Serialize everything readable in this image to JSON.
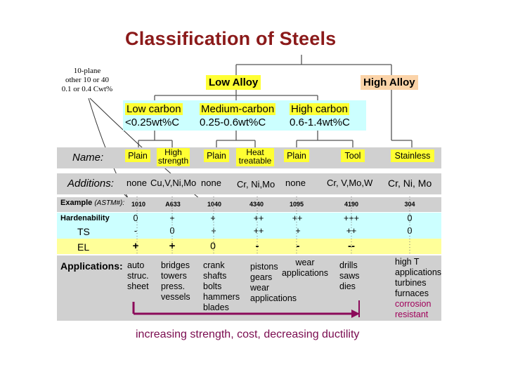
{
  "title": "Classification of Steels",
  "handwritten_note": [
    "10-plane",
    "other 10 or 40",
    "0.1 or 0.4 Cwt%"
  ],
  "alloy_groups": {
    "low": "Low Alloy",
    "high": "High Alloy"
  },
  "carbon_groups": [
    {
      "name": "Low carbon",
      "range": "<0.25wt%C"
    },
    {
      "name": "Medium-carbon",
      "range": "0.25-0.6wt%C"
    },
    {
      "name": "High carbon",
      "range": "0.6-1.4wt%C"
    }
  ],
  "rows": {
    "name_label": "Name:",
    "additions_label": "Additions:",
    "example_label": "Example",
    "example_sub": "(ASTM#):",
    "hardenability_label": "Hardenability",
    "ts_label": "TS",
    "el_label": "EL",
    "applications_label": "Applications:"
  },
  "columns": [
    {
      "name": "Plain",
      "additions": "none",
      "example": "1010",
      "hardenability": "0",
      "ts": "-",
      "el": "+",
      "applications": [
        "auto",
        "struc.",
        "sheet"
      ]
    },
    {
      "name": "High strength",
      "additions": "Cu,V,Ni,Mo",
      "example": "A633",
      "hardenability": "+",
      "ts": "0",
      "el": "+",
      "applications": [
        "bridges",
        "towers",
        "press.",
        "vessels"
      ]
    },
    {
      "name": "Plain",
      "additions": "none",
      "example": "1040",
      "hardenability": "+",
      "ts": "+",
      "el": "0",
      "applications": [
        "crank",
        "shafts",
        "bolts",
        "hammers",
        "blades"
      ]
    },
    {
      "name": "Heat treatable",
      "additions": "Cr, Ni,Mo",
      "example": "4340",
      "hardenability": "++",
      "ts": "++",
      "el": "-",
      "applications": [
        "pistons",
        "gears",
        "wear",
        "applications"
      ]
    },
    {
      "name": "Plain",
      "additions": "none",
      "example": "1095",
      "hardenability": "++",
      "ts": "+",
      "el": "-",
      "applications": [
        "wear",
        "applications"
      ]
    },
    {
      "name": "Tool",
      "additions": "Cr, V,Mo,W",
      "example": "4190",
      "hardenability": "+++",
      "ts": "++",
      "el": "--",
      "applications": [
        "drills",
        "saws",
        "dies"
      ]
    },
    {
      "name": "Stainless",
      "additions": "Cr, Ni, Mo",
      "example": "304",
      "hardenability": "0",
      "ts": "0",
      "el": "++",
      "applications": [
        "high T",
        "applications",
        "turbines",
        "furnaces",
        "corrosion",
        "resistant"
      ]
    }
  ],
  "footer": "increasing strength, cost, decreasing ductility",
  "colors": {
    "title": "#8b1a1a",
    "footer_arrow": "#8b0a5a",
    "corrosion_text": "#a0005a"
  }
}
